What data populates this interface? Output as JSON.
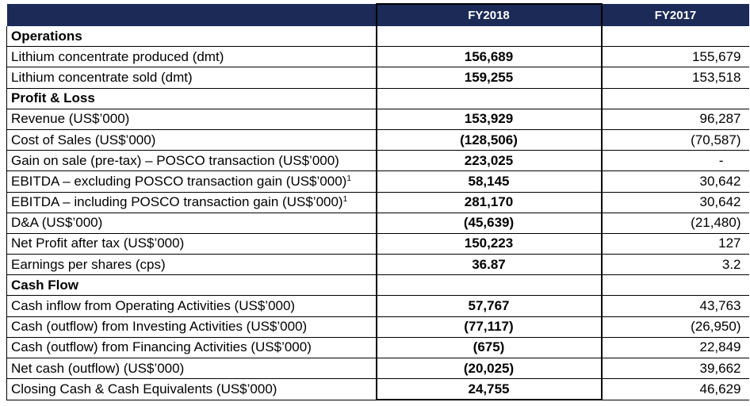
{
  "header": {
    "col_label": "",
    "col_fy2018": "FY2018",
    "col_fy2017": "FY2017"
  },
  "sections": [
    {
      "title": "Operations",
      "rows": [
        {
          "label": "Lithium concentrate produced (dmt)",
          "sup": "",
          "fy2018": "156,689",
          "fy2017": "155,679"
        },
        {
          "label": "Lithium concentrate sold (dmt)",
          "sup": "",
          "fy2018": "159,255",
          "fy2017": "153,518"
        }
      ]
    },
    {
      "title": "Profit & Loss",
      "rows": [
        {
          "label": "Revenue (US$’000)",
          "sup": "",
          "fy2018": "153,929",
          "fy2017": "96,287"
        },
        {
          "label": "Cost of Sales (US$’000)",
          "sup": "",
          "fy2018": "(128,506)",
          "fy2017": "(70,587)"
        },
        {
          "label": "Gain on sale (pre-tax) – POSCO transaction (US$’000)",
          "sup": "",
          "fy2018": "223,025",
          "fy2017": "-"
        },
        {
          "label": "EBITDA – excluding POSCO transaction gain (US$’000)",
          "sup": "1",
          "fy2018": "58,145",
          "fy2017": "30,642"
        },
        {
          "label": "EBITDA – including POSCO transaction gain (US$’000)",
          "sup": "1",
          "fy2018": "281,170",
          "fy2017": "30,642"
        },
        {
          "label": "D&A (US$’000)",
          "sup": "",
          "fy2018": "(45,639)",
          "fy2017": "(21,480)"
        },
        {
          "label": "Net Profit after tax (US$’000)",
          "sup": "",
          "fy2018": "150,223",
          "fy2017": "127"
        },
        {
          "label": "Earnings per shares (cps)",
          "sup": "",
          "fy2018": "36.87",
          "fy2017": "3.2"
        }
      ]
    },
    {
      "title": "Cash Flow",
      "rows": [
        {
          "label": "Cash inflow from Operating Activities (US$’000)",
          "sup": "",
          "fy2018": "57,767",
          "fy2017": "43,763"
        },
        {
          "label": "Cash (outflow) from Investing Activities (US$’000)",
          "sup": "",
          "fy2018": "(77,117)",
          "fy2017": "(26,950)"
        },
        {
          "label": "Cash (outflow) from Financing Activities (US$’000)",
          "sup": "",
          "fy2018": "(675)",
          "fy2017": "22,849"
        },
        {
          "label": "Net cash (outflow) (US$’000)",
          "sup": "",
          "fy2018": "(20,025)",
          "fy2017": "39,662"
        },
        {
          "label": "Closing Cash & Cash Equivalents (US$’000)",
          "sup": "",
          "fy2018": "24,755",
          "fy2017": "46,629"
        }
      ]
    }
  ],
  "colors": {
    "header_bg": "#1b2a57",
    "header_text": "#ffffff"
  }
}
